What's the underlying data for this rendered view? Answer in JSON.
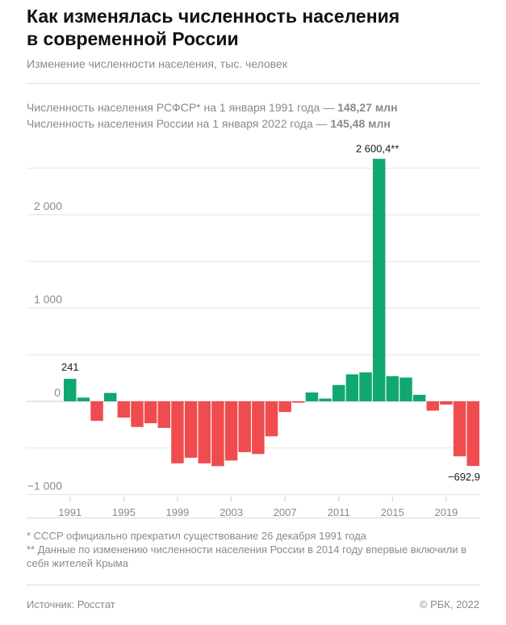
{
  "header": {
    "title": "Как изменялась численность населения\nв современной России",
    "subtitle": "Изменение численности населения, тыс. человек"
  },
  "info": {
    "line1_text": "Численность населения РСФСР* на 1 января 1991 года — ",
    "line1_value": "148,27 млн",
    "line2_text": "Численность населения России на 1 января 2022 года — ",
    "line2_value": "145,48 млн"
  },
  "chart_data": {
    "type": "bar",
    "title": "",
    "xlabel": "",
    "ylabel": "",
    "ylim": [
      -1000,
      2800
    ],
    "y_ticks": [
      -1000,
      0,
      1000,
      2000
    ],
    "y_tick_labels": [
      "−1 000",
      "0",
      "1 000",
      "2 000"
    ],
    "x_tick_labels": [
      "1991",
      "1995",
      "1999",
      "2003",
      "2007",
      "2011",
      "2015",
      "2019"
    ],
    "x_tick_years": [
      1991,
      1995,
      1999,
      2003,
      2007,
      2011,
      2015,
      2019
    ],
    "grid": true,
    "positive_color": "#11a870",
    "negative_color": "#f04c4f",
    "categories": [
      1991,
      1992,
      1993,
      1994,
      1995,
      1996,
      1997,
      1998,
      1999,
      2000,
      2001,
      2002,
      2003,
      2004,
      2005,
      2006,
      2007,
      2008,
      2009,
      2010,
      2011,
      2012,
      2013,
      2014,
      2015,
      2016,
      2017,
      2018,
      2019,
      2020,
      2021
    ],
    "values": [
      241,
      40,
      -210,
      90,
      -175,
      -275,
      -235,
      -285,
      -665,
      -605,
      -665,
      -695,
      -635,
      -545,
      -565,
      -375,
      -115,
      -15,
      95,
      30,
      175,
      290,
      310,
      2600.4,
      270,
      255,
      70,
      -100,
      -35,
      -590,
      -692.9
    ],
    "annotations": [
      {
        "year": 1991,
        "text": "241"
      },
      {
        "year": 2014,
        "text": "2 600,4**"
      },
      {
        "year": 2021,
        "text": "−692,9"
      }
    ]
  },
  "footnotes": [
    "* СССР официально прекратил существование 26 декабря 1991 года",
    "** Данные по изменению численности населения России в 2014 году впервые включили в себя жителей Крыма"
  ],
  "footer": {
    "source": "Источник: Росстат",
    "copyright": "© РБК, 2022"
  }
}
